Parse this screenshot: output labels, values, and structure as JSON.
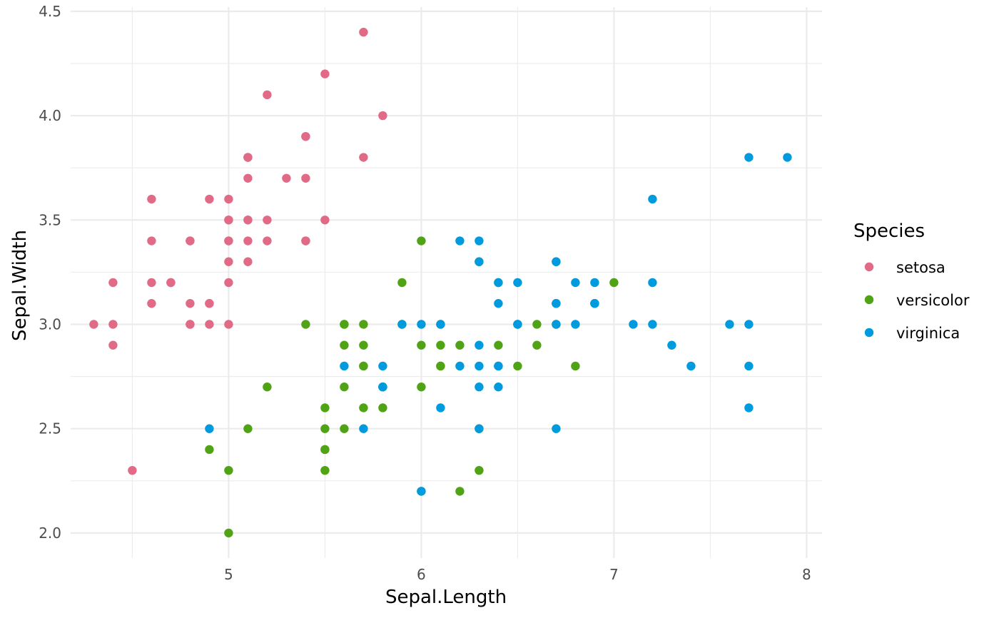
{
  "chart_data": {
    "type": "scatter",
    "xlabel": "Sepal.Length",
    "ylabel": "Sepal.Width",
    "xlim": [
      4.18,
      8.08
    ],
    "ylim": [
      1.88,
      4.52
    ],
    "x_ticks": [
      5,
      6,
      7,
      8
    ],
    "x_tick_labels": [
      "5",
      "6",
      "7",
      "8"
    ],
    "x_minor_ticks": [
      4.5,
      5.5,
      6.5,
      7.5
    ],
    "y_ticks": [
      2.0,
      2.5,
      3.0,
      3.5,
      4.0,
      4.5
    ],
    "y_tick_labels": [
      "2.0",
      "2.5",
      "3.0",
      "3.5",
      "4.0",
      "4.5"
    ],
    "y_minor_ticks": [
      2.25,
      2.75,
      3.25,
      3.75,
      4.25
    ],
    "grid": true,
    "legend": {
      "title": "Species",
      "placement": "right"
    },
    "series": [
      {
        "name": "setosa",
        "color": "#E16A86",
        "points": [
          [
            5.1,
            3.5
          ],
          [
            4.9,
            3.0
          ],
          [
            4.7,
            3.2
          ],
          [
            4.6,
            3.1
          ],
          [
            5.0,
            3.6
          ],
          [
            5.4,
            3.9
          ],
          [
            4.6,
            3.4
          ],
          [
            5.0,
            3.4
          ],
          [
            4.4,
            2.9
          ],
          [
            4.9,
            3.1
          ],
          [
            5.4,
            3.7
          ],
          [
            4.8,
            3.4
          ],
          [
            4.8,
            3.0
          ],
          [
            4.3,
            3.0
          ],
          [
            5.8,
            4.0
          ],
          [
            5.7,
            4.4
          ],
          [
            5.4,
            3.9
          ],
          [
            5.1,
            3.5
          ],
          [
            5.7,
            3.8
          ],
          [
            5.1,
            3.8
          ],
          [
            5.4,
            3.4
          ],
          [
            5.1,
            3.7
          ],
          [
            4.6,
            3.6
          ],
          [
            5.1,
            3.3
          ],
          [
            4.8,
            3.4
          ],
          [
            5.0,
            3.0
          ],
          [
            5.0,
            3.4
          ],
          [
            5.2,
            3.5
          ],
          [
            5.2,
            3.4
          ],
          [
            4.7,
            3.2
          ],
          [
            4.8,
            3.1
          ],
          [
            5.4,
            3.4
          ],
          [
            5.2,
            4.1
          ],
          [
            5.5,
            4.2
          ],
          [
            4.9,
            3.1
          ],
          [
            5.0,
            3.2
          ],
          [
            5.5,
            3.5
          ],
          [
            4.9,
            3.6
          ],
          [
            4.4,
            3.0
          ],
          [
            5.1,
            3.4
          ],
          [
            5.0,
            3.5
          ],
          [
            4.5,
            2.3
          ],
          [
            4.4,
            3.2
          ],
          [
            5.0,
            3.5
          ],
          [
            5.1,
            3.8
          ],
          [
            4.8,
            3.0
          ],
          [
            5.1,
            3.8
          ],
          [
            4.6,
            3.2
          ],
          [
            5.3,
            3.7
          ],
          [
            5.0,
            3.3
          ]
        ]
      },
      {
        "name": "versicolor",
        "color": "#50A315",
        "points": [
          [
            7.0,
            3.2
          ],
          [
            6.4,
            3.2
          ],
          [
            6.9,
            3.1
          ],
          [
            5.5,
            2.3
          ],
          [
            6.5,
            2.8
          ],
          [
            5.7,
            2.8
          ],
          [
            6.3,
            3.3
          ],
          [
            4.9,
            2.4
          ],
          [
            6.6,
            2.9
          ],
          [
            5.2,
            2.7
          ],
          [
            5.0,
            2.0
          ],
          [
            5.9,
            3.0
          ],
          [
            6.0,
            2.2
          ],
          [
            6.1,
            2.9
          ],
          [
            5.6,
            2.9
          ],
          [
            6.7,
            3.1
          ],
          [
            5.6,
            3.0
          ],
          [
            5.8,
            2.7
          ],
          [
            6.2,
            2.2
          ],
          [
            5.6,
            2.5
          ],
          [
            5.9,
            3.2
          ],
          [
            6.1,
            2.8
          ],
          [
            6.3,
            2.5
          ],
          [
            6.1,
            2.8
          ],
          [
            6.4,
            2.9
          ],
          [
            6.6,
            3.0
          ],
          [
            6.8,
            2.8
          ],
          [
            6.7,
            3.0
          ],
          [
            6.0,
            2.9
          ],
          [
            5.7,
            2.6
          ],
          [
            5.5,
            2.4
          ],
          [
            5.5,
            2.4
          ],
          [
            5.8,
            2.7
          ],
          [
            6.0,
            2.7
          ],
          [
            5.4,
            3.0
          ],
          [
            6.0,
            3.4
          ],
          [
            6.7,
            3.1
          ],
          [
            6.3,
            2.3
          ],
          [
            5.6,
            3.0
          ],
          [
            5.5,
            2.5
          ],
          [
            5.5,
            2.6
          ],
          [
            6.1,
            3.0
          ],
          [
            5.8,
            2.6
          ],
          [
            5.0,
            2.3
          ],
          [
            5.6,
            2.7
          ],
          [
            5.7,
            3.0
          ],
          [
            5.7,
            2.9
          ],
          [
            6.2,
            2.9
          ],
          [
            5.1,
            2.5
          ],
          [
            5.7,
            2.8
          ]
        ]
      },
      {
        "name": "virginica",
        "color": "#009ADE",
        "points": [
          [
            6.3,
            3.3
          ],
          [
            5.8,
            2.7
          ],
          [
            7.1,
            3.0
          ],
          [
            6.3,
            2.9
          ],
          [
            6.5,
            3.0
          ],
          [
            7.6,
            3.0
          ],
          [
            4.9,
            2.5
          ],
          [
            7.3,
            2.9
          ],
          [
            6.7,
            2.5
          ],
          [
            7.2,
            3.6
          ],
          [
            6.5,
            3.2
          ],
          [
            6.4,
            2.7
          ],
          [
            6.8,
            3.0
          ],
          [
            5.7,
            2.5
          ],
          [
            5.8,
            2.8
          ],
          [
            6.4,
            3.2
          ],
          [
            6.5,
            3.0
          ],
          [
            7.7,
            3.8
          ],
          [
            7.7,
            2.6
          ],
          [
            6.0,
            2.2
          ],
          [
            6.9,
            3.2
          ],
          [
            5.6,
            2.8
          ],
          [
            7.7,
            2.8
          ],
          [
            6.3,
            2.7
          ],
          [
            6.7,
            3.3
          ],
          [
            7.2,
            3.2
          ],
          [
            6.2,
            2.8
          ],
          [
            6.1,
            3.0
          ],
          [
            6.4,
            2.8
          ],
          [
            7.2,
            3.0
          ],
          [
            7.4,
            2.8
          ],
          [
            7.9,
            3.8
          ],
          [
            6.4,
            2.8
          ],
          [
            6.3,
            2.8
          ],
          [
            6.1,
            2.6
          ],
          [
            7.7,
            3.0
          ],
          [
            6.3,
            3.4
          ],
          [
            6.4,
            3.1
          ],
          [
            6.0,
            3.0
          ],
          [
            6.9,
            3.1
          ],
          [
            6.7,
            3.1
          ],
          [
            6.9,
            3.1
          ],
          [
            5.8,
            2.7
          ],
          [
            6.8,
            3.2
          ],
          [
            6.7,
            3.3
          ],
          [
            6.7,
            3.0
          ],
          [
            6.3,
            2.5
          ],
          [
            6.5,
            3.0
          ],
          [
            6.2,
            3.4
          ],
          [
            5.9,
            3.0
          ]
        ]
      }
    ]
  }
}
